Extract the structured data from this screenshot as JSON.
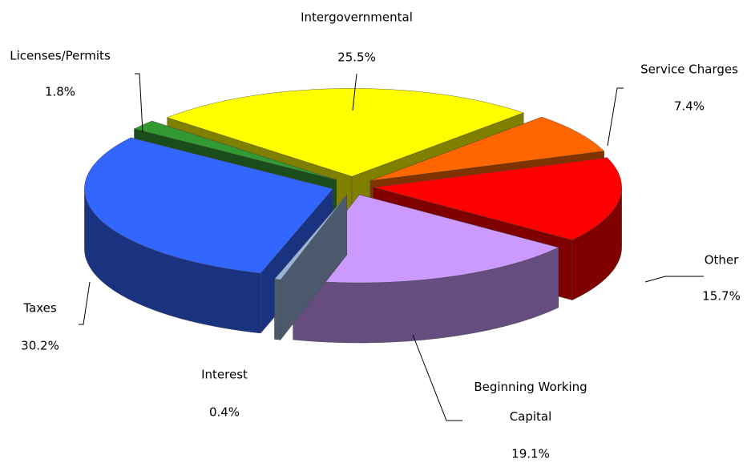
{
  "chart_data": {
    "type": "pie3d",
    "categories": [
      "Intergovernmental",
      "Service Charges",
      "Other",
      "Beginning Working Capital",
      "Interest",
      "Taxes",
      "Licenses/Permits"
    ],
    "values": [
      25.5,
      7.4,
      15.7,
      19.1,
      0.4,
      30.2,
      1.8
    ],
    "value_labels": [
      "25.5%",
      "7.4%",
      "15.7%",
      "19.1%",
      "0.4%",
      "30.2%",
      "1.8%"
    ],
    "colors": [
      "#ffff00",
      "#ff6600",
      "#ff0000",
      "#cc99ff",
      "#99b3d9",
      "#3366ff",
      "#339933"
    ]
  }
}
